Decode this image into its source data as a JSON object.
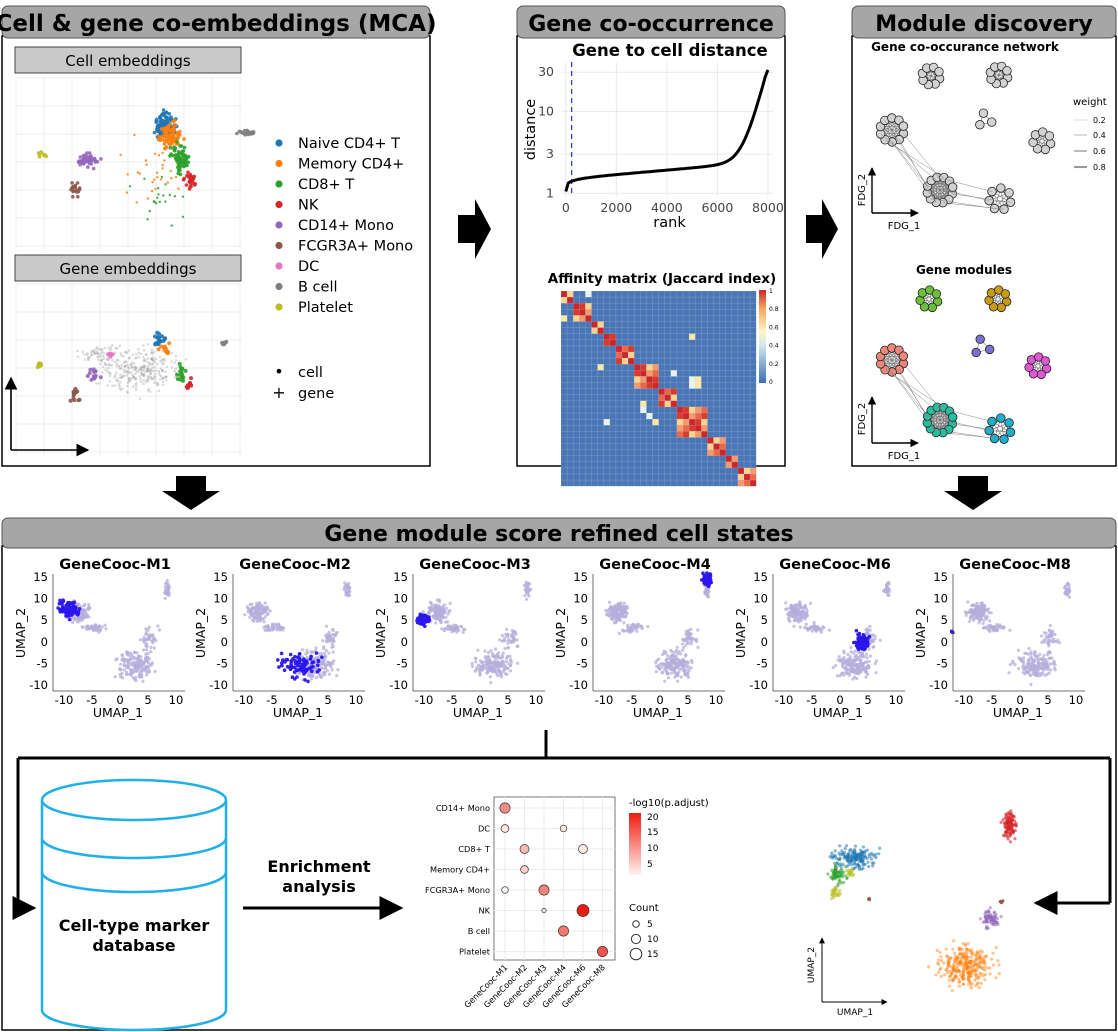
{
  "panels": {
    "mca": {
      "title": "Cell & gene co-embeddings (MCA)",
      "cell_label": "Cell embeddings",
      "gene_label": "Gene embeddings"
    },
    "cooc": {
      "title": "Gene co-occurrence",
      "distance_title": "Gene to cell distance",
      "affinity_title": "Affinity matrix (Jaccard index)"
    },
    "module": {
      "title": "Module discovery",
      "network_title": "Gene co-occurance network",
      "modules_title": "Gene modules"
    },
    "score": {
      "title": "Gene module score refined cell states"
    }
  },
  "legend_celltypes": [
    {
      "label": "Naive CD4+ T",
      "color": "#1f77b4"
    },
    {
      "label": "Memory CD4+",
      "color": "#ff7f0e"
    },
    {
      "label": "CD8+ T",
      "color": "#2ca02c"
    },
    {
      "label": "NK",
      "color": "#d62728"
    },
    {
      "label": "CD14+ Mono",
      "color": "#9467bd"
    },
    {
      "label": "FCGR3A+ Mono",
      "color": "#8c564b"
    },
    {
      "label": "DC",
      "color": "#e377c2"
    },
    {
      "label": "B cell",
      "color": "#7f7f7f"
    },
    {
      "label": "Platelet",
      "color": "#bcbd22"
    }
  ],
  "legend_shapes": [
    {
      "symbol": "•",
      "label": "cell"
    },
    {
      "symbol": "+",
      "label": "gene"
    }
  ],
  "distance_plot": {
    "xlabel": "rank",
    "ylabel": "distance",
    "xticks": [
      "0",
      "2000",
      "4000",
      "6000",
      "8000"
    ],
    "yticks": [
      "1",
      "3",
      "10",
      "30"
    ]
  },
  "heatmap_scale": [
    "1",
    "0.8",
    "0.6",
    "0.4",
    "0.2",
    "0"
  ],
  "network": {
    "weight_title": "weight",
    "weights": [
      "0.2",
      "0.4",
      "0.6",
      "0.8"
    ],
    "axis_x": "FDG_1",
    "axis_y": "FDG_2"
  },
  "umap": {
    "xlabel": "UMAP_1",
    "ylabel": "UMAP_2",
    "xticks": [
      "-10",
      "-5",
      "0",
      "5",
      "10"
    ],
    "yticks": [
      "15",
      "10",
      "5",
      "0",
      "-5",
      "-10"
    ],
    "panels": [
      "GeneCooc-M1",
      "GeneCooc-M2",
      "GeneCooc-M3",
      "GeneCooc-M4",
      "GeneCooc-M6",
      "GeneCooc-M8"
    ]
  },
  "enrichment": {
    "database_label_1": "Cell-type marker",
    "database_label_2": "database",
    "arrow_label_1": "Enrichment",
    "arrow_label_2": "analysis",
    "padj_title": "-log10(p.adjust)",
    "padj_ticks": [
      "20",
      "15",
      "10",
      "5"
    ],
    "count_title": "Count",
    "count_ticks": [
      "5",
      "10",
      "15"
    ],
    "final_xlabel": "UMAP_1",
    "final_ylabel": "UMAP_2"
  },
  "chart_data": {
    "type": "scatter",
    "title": "",
    "categories_y": [
      "CD14+ Mono",
      "DC",
      "CD8+ T",
      "Memory CD4+",
      "FCGR3A+ Mono",
      "NK",
      "B cell",
      "Platelet"
    ],
    "categories_x": [
      "GeneCooc-M1",
      "GeneCooc-M2",
      "GeneCooc-M3",
      "GeneCooc-M4",
      "GeneCooc-M6",
      "GeneCooc-M8"
    ],
    "points": [
      {
        "x": "GeneCooc-M1",
        "y": "CD14+ Mono",
        "padj": 10,
        "count": 12
      },
      {
        "x": "GeneCooc-M1",
        "y": "DC",
        "padj": 2,
        "count": 8
      },
      {
        "x": "GeneCooc-M4",
        "y": "DC",
        "padj": 2,
        "count": 6
      },
      {
        "x": "GeneCooc-M2",
        "y": "CD8+ T",
        "padj": 6,
        "count": 10
      },
      {
        "x": "GeneCooc-M6",
        "y": "CD8+ T",
        "padj": 2,
        "count": 10
      },
      {
        "x": "GeneCooc-M2",
        "y": "Memory CD4+",
        "padj": 4,
        "count": 8
      },
      {
        "x": "GeneCooc-M1",
        "y": "FCGR3A+ Mono",
        "padj": 1,
        "count": 6
      },
      {
        "x": "GeneCooc-M3",
        "y": "FCGR3A+ Mono",
        "padj": 11,
        "count": 12
      },
      {
        "x": "GeneCooc-M3",
        "y": "NK",
        "padj": 1,
        "count": 2
      },
      {
        "x": "GeneCooc-M6",
        "y": "NK",
        "padj": 20,
        "count": 15
      },
      {
        "x": "GeneCooc-M4",
        "y": "B cell",
        "padj": 12,
        "count": 12
      },
      {
        "x": "GeneCooc-M8",
        "y": "Platelet",
        "padj": 15,
        "count": 12
      }
    ]
  }
}
